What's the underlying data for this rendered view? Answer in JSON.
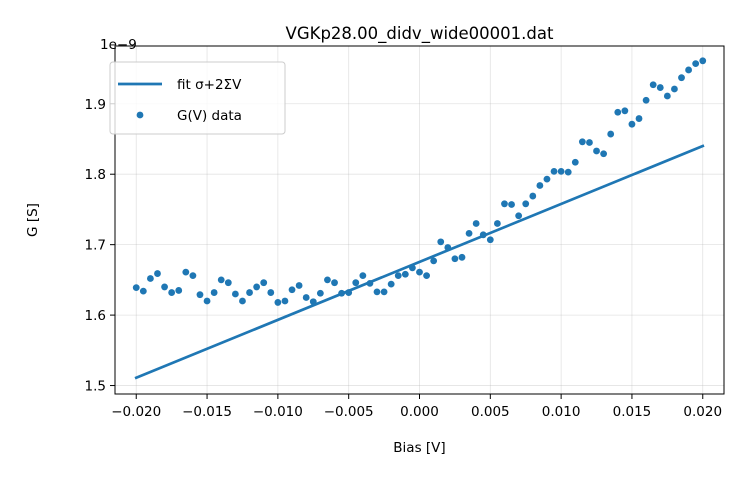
{
  "chart_data": {
    "type": "scatter",
    "title": "VGKp28.00_didv_wide00001.dat",
    "xlabel": "Bias [V]",
    "ylabel": "G [S]",
    "y_scale_label": "1e−9",
    "xlim": [
      -0.0215,
      0.0215
    ],
    "ylim": [
      1.488,
      1.982
    ],
    "grid": true,
    "legend_position": "upper left",
    "x_ticks": [
      -0.02,
      -0.015,
      -0.01,
      -0.005,
      0.0,
      0.005,
      0.01,
      0.015,
      0.02
    ],
    "x_tick_labels": [
      "−0.020",
      "−0.015",
      "−0.010",
      "−0.005",
      "0.000",
      "0.005",
      "0.010",
      "0.015",
      "0.020"
    ],
    "y_ticks": [
      1.5,
      1.6,
      1.7,
      1.8,
      1.9
    ],
    "y_tick_labels": [
      "1.5",
      "1.6",
      "1.7",
      "1.8",
      "1.9"
    ],
    "series": [
      {
        "name": "fit σ+2ΣV",
        "kind": "line",
        "color": "#1f77b4",
        "x": [
          -0.02,
          0.02
        ],
        "y": [
          1.511,
          1.84
        ]
      },
      {
        "name": "G(V) data",
        "kind": "scatter",
        "color": "#1f77b4",
        "x": [
          -0.02,
          -0.0195,
          -0.019,
          -0.0185,
          -0.018,
          -0.0175,
          -0.017,
          -0.0165,
          -0.016,
          -0.0155,
          -0.015,
          -0.0145,
          -0.014,
          -0.0135,
          -0.013,
          -0.0125,
          -0.012,
          -0.0115,
          -0.011,
          -0.0105,
          -0.01,
          -0.0095,
          -0.009,
          -0.0085,
          -0.008,
          -0.0075,
          -0.007,
          -0.0065,
          -0.006,
          -0.0055,
          -0.005,
          -0.0045,
          -0.004,
          -0.0035,
          -0.003,
          -0.0025,
          -0.002,
          -0.0015,
          -0.001,
          -0.0005,
          0.0,
          0.0005,
          0.001,
          0.0015,
          0.002,
          0.0025,
          0.003,
          0.0035,
          0.004,
          0.0045,
          0.005,
          0.0055,
          0.006,
          0.0065,
          0.007,
          0.0075,
          0.008,
          0.0085,
          0.009,
          0.0095,
          0.01,
          0.0105,
          0.011,
          0.0115,
          0.012,
          0.0125,
          0.013,
          0.0135,
          0.014,
          0.0145,
          0.015,
          0.0155,
          0.016,
          0.0165,
          0.017,
          0.0175,
          0.018,
          0.0185,
          0.019,
          0.0195,
          0.02
        ],
        "y": [
          1.639,
          1.634,
          1.652,
          1.659,
          1.64,
          1.632,
          1.635,
          1.661,
          1.656,
          1.629,
          1.62,
          1.632,
          1.65,
          1.646,
          1.63,
          1.62,
          1.632,
          1.64,
          1.646,
          1.632,
          1.618,
          1.62,
          1.636,
          1.642,
          1.625,
          1.619,
          1.631,
          1.65,
          1.646,
          1.631,
          1.632,
          1.646,
          1.656,
          1.645,
          1.633,
          1.633,
          1.644,
          1.656,
          1.658,
          1.667,
          1.661,
          1.656,
          1.677,
          1.704,
          1.696,
          1.68,
          1.682,
          1.716,
          1.73,
          1.714,
          1.707,
          1.73,
          1.758,
          1.757,
          1.741,
          1.758,
          1.769,
          1.784,
          1.793,
          1.804,
          1.804,
          1.803,
          1.817,
          1.846,
          1.845,
          1.833,
          1.829,
          1.857,
          1.888,
          1.89,
          1.871,
          1.879,
          1.905,
          1.927,
          1.923,
          1.911,
          1.921,
          1.937,
          1.948,
          1.957,
          1.961
        ]
      }
    ]
  }
}
